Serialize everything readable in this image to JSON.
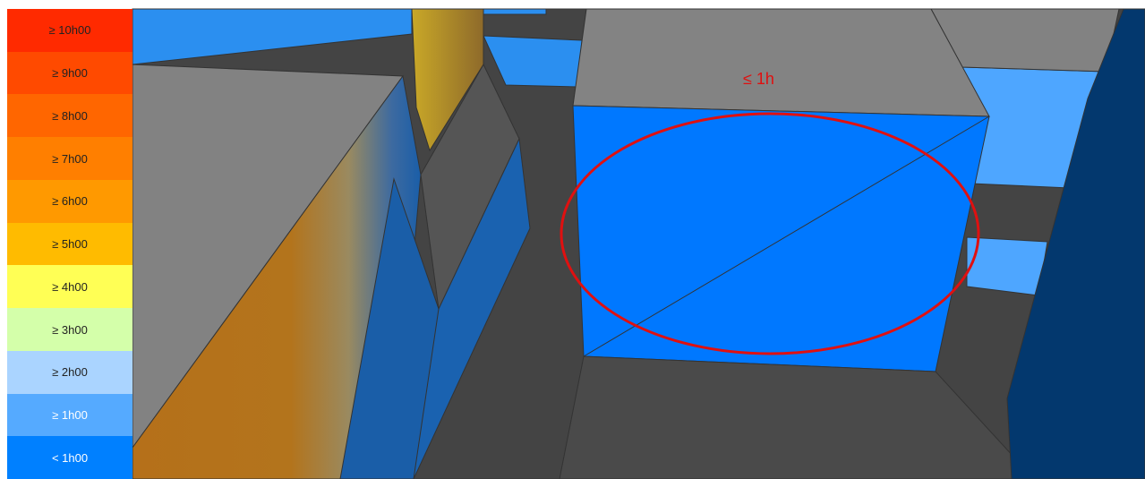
{
  "legend": {
    "items": [
      "≥ 10h00",
      "≥ 9h00",
      "≥ 8h00",
      "≥ 7h00",
      "≥ 6h00",
      "≥ 5h00",
      "≥ 4h00",
      "≥ 3h00",
      "≥ 2h00",
      "≥ 1h00",
      "< 1h00"
    ]
  },
  "annotation": "≤ 1h"
}
